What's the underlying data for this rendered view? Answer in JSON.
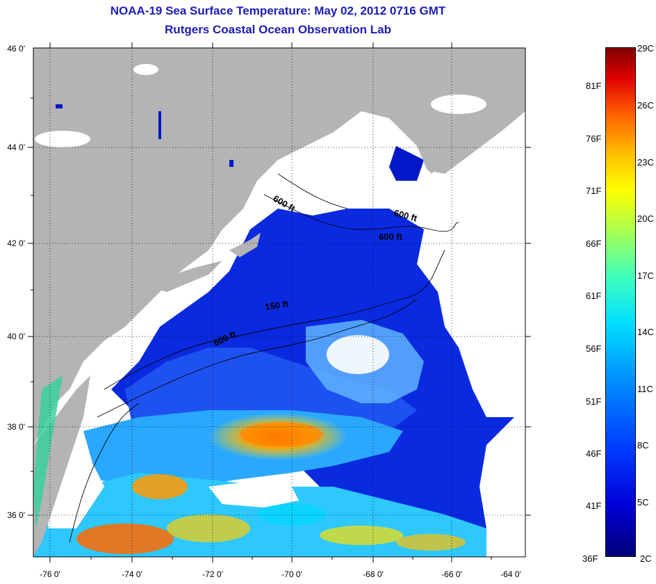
{
  "title": {
    "line1": "NOAA-19 Sea Surface Temperature:  May 02, 2012 0716 GMT",
    "line2": "Rutgers Coastal Ocean Observation Lab"
  },
  "map": {
    "lon_labels": [
      "-76 0'",
      "-74 0'",
      "-72 0'",
      "-70 0'",
      "-68 0'",
      "-66 0'",
      "-64 0'"
    ],
    "lat_labels": [
      "46 0'",
      "44 0'",
      "42 0'",
      "40 0'",
      "38 0'",
      "36 0'"
    ],
    "depth_labels": [
      "600 ft",
      "600 ft",
      "600 ft",
      "150 ft",
      "600 ft"
    ],
    "colors": {
      "land": "#b4b4b4",
      "cloud": "#ffffff",
      "grid": "#000000"
    }
  },
  "colorbar": {
    "fahrenheit": [
      "81F",
      "76F",
      "71F",
      "66F",
      "61F",
      "56F",
      "51F",
      "46F",
      "41F",
      "36F"
    ],
    "celsius": [
      "29C",
      "26C",
      "23C",
      "20C",
      "17C",
      "14C",
      "11C",
      "8C",
      "5C",
      "2C"
    ],
    "min_color": "#00007a",
    "max_color": "#800000"
  }
}
